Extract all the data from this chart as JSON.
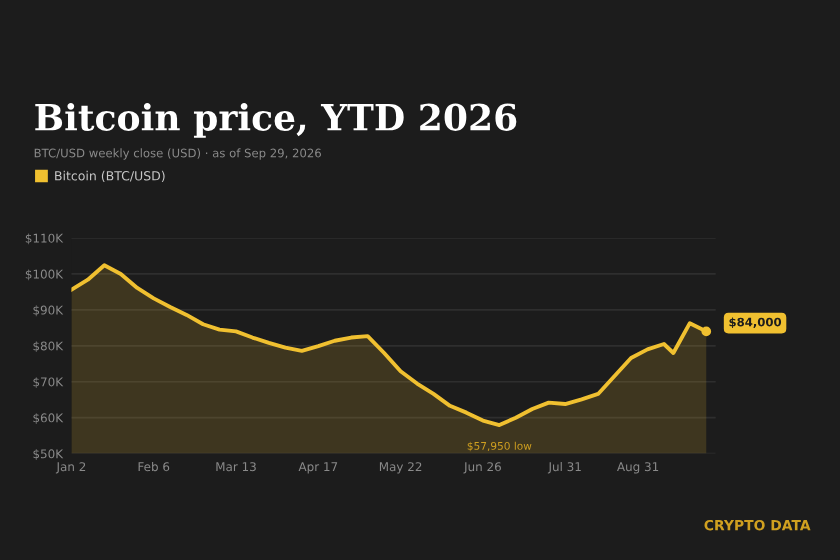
{
  "chart_data": {
    "type": "area",
    "title": "Bitcoin price, YTD 2026",
    "subtitle": "BTC/USD weekly close (USD) · as of Sep 29, 2026",
    "x": [
      "2026-01-02",
      "2026-01-09",
      "2026-01-16",
      "2026-01-23",
      "2026-01-30",
      "2026-02-06",
      "2026-02-13",
      "2026-02-20",
      "2026-02-27",
      "2026-03-06",
      "2026-03-13",
      "2026-03-20",
      "2026-03-27",
      "2026-04-03",
      "2026-04-10",
      "2026-04-17",
      "2026-04-24",
      "2026-05-01",
      "2026-05-08",
      "2026-05-15",
      "2026-05-22",
      "2026-05-29",
      "2026-06-05",
      "2026-06-12",
      "2026-06-19",
      "2026-06-26",
      "2026-07-03",
      "2026-07-10",
      "2026-07-17",
      "2026-07-24",
      "2026-07-31",
      "2026-08-07",
      "2026-08-14",
      "2026-08-21",
      "2026-08-28",
      "2026-09-04",
      "2026-09-11",
      "2026-09-15",
      "2026-09-22",
      "2026-09-29"
    ],
    "series": [
      {
        "name": "Bitcoin (BTC/USD)",
        "color": "#f0c030",
        "values": [
          95600,
          98400,
          102400,
          100000,
          96100,
          93200,
          90800,
          88600,
          86000,
          84500,
          84000,
          82300,
          80800,
          79500,
          78600,
          79900,
          81400,
          82300,
          82700,
          78000,
          72900,
          69500,
          66600,
          63300,
          61400,
          59200,
          57950,
          60000,
          62400,
          64200,
          63800,
          65100,
          66600,
          71600,
          76600,
          79000,
          80500,
          78000,
          86300,
          84000
        ]
      }
    ],
    "xlim": [
      "2026-01-02",
      "2026-10-03"
    ],
    "xticks": [
      {
        "value": "2026-01-02",
        "label": "Jan 2"
      },
      {
        "value": "2026-02-06",
        "label": "Feb 6"
      },
      {
        "value": "2026-03-13",
        "label": "Mar 13"
      },
      {
        "value": "2026-04-17",
        "label": "Apr 17"
      },
      {
        "value": "2026-05-22",
        "label": "May 22"
      },
      {
        "value": "2026-06-26",
        "label": "Jun 26"
      },
      {
        "value": "2026-07-31",
        "label": "Jul 31"
      },
      {
        "value": "2026-08-31",
        "label": "Aug 31"
      }
    ],
    "ylim": [
      50000,
      110000
    ],
    "yticks": [
      {
        "value": 50000,
        "label": "$50K"
      },
      {
        "value": 60000,
        "label": "$60K"
      },
      {
        "value": 70000,
        "label": "$70K"
      },
      {
        "value": 80000,
        "label": "$80K"
      },
      {
        "value": 90000,
        "label": "$90K"
      },
      {
        "value": 100000,
        "label": "$100K"
      },
      {
        "value": 110000,
        "label": "$110K"
      }
    ],
    "grid": "y",
    "legend": "top left",
    "annotations": [
      {
        "text": "$57,950 low",
        "x": "2026-07-03",
        "y": 57950
      },
      {
        "text": "$84,000",
        "x": "2026-09-29",
        "y": 84000
      },
      "CRYPTO DATA"
    ]
  }
}
